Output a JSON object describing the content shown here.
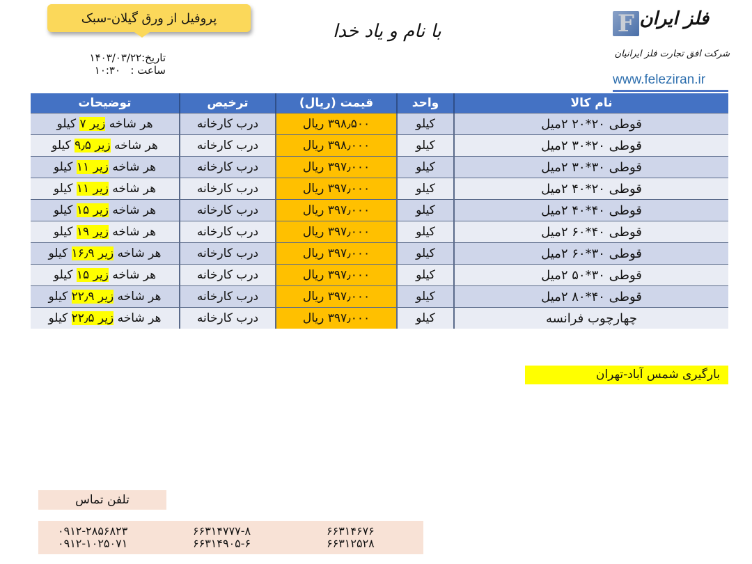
{
  "header": {
    "title": "پروفیل از ورق گیلان-سبک",
    "date_label": "تاریخ:",
    "date": "۱۴۰۳/۰۳/۲۲",
    "time_label": "ساعت :",
    "time": "۱۰:۳۰",
    "invocation": "با نام و یاد خدا"
  },
  "logo": {
    "letter": "F",
    "name": "فلز ایران",
    "company": "شرکت افق تجارت فلز ایرانیان",
    "url": "www.feleziran.ir"
  },
  "table": {
    "headers": [
      "نام کالا",
      "واحد",
      "قیمت (ریال)",
      "ترخیص",
      "توضیحات"
    ],
    "rows": [
      {
        "type": "قوطی",
        "size": "۲۰*۲۰",
        "thickness": "۲میل",
        "unit": "کیلو",
        "price": "۳۹۸٫۵۰۰ ریال",
        "delivery": "درب کارخانه",
        "desc_pre": "هر شاخه ",
        "desc_hl": "زیر ۷",
        "desc_post": " کیلو"
      },
      {
        "type": "قوطی",
        "size": "۳۰*۲۰",
        "thickness": "۲میل",
        "unit": "کیلو",
        "price": "۳۹۸٫۰۰۰ ریال",
        "delivery": "درب کارخانه",
        "desc_pre": "هر شاخه ",
        "desc_hl": "زیر ۹٫۵",
        "desc_post": " کیلو"
      },
      {
        "type": "قوطی",
        "size": "۳۰*۳۰",
        "thickness": "۲میل",
        "unit": "کیلو",
        "price": "۳۹۷٫۰۰۰ ریال",
        "delivery": "درب کارخانه",
        "desc_pre": "هر شاخه ",
        "desc_hl": "زیر ۱۱",
        "desc_post": " کیلو"
      },
      {
        "type": "قوطی",
        "size": "۴۰*۲۰",
        "thickness": "۲میل",
        "unit": "کیلو",
        "price": "۳۹۷٫۰۰۰ ریال",
        "delivery": "درب کارخانه",
        "desc_pre": "هر شاخه ",
        "desc_hl": "زیر ۱۱",
        "desc_post": " کیلو"
      },
      {
        "type": "قوطی",
        "size": "۴۰*۴۰",
        "thickness": "۲میل",
        "unit": "کیلو",
        "price": "۳۹۷٫۰۰۰ ریال",
        "delivery": "درب کارخانه",
        "desc_pre": "هر شاخه ",
        "desc_hl": "زیر ۱۵",
        "desc_post": " کیلو"
      },
      {
        "type": "قوطی",
        "size": "۶۰*۴۰",
        "thickness": "۲میل",
        "unit": "کیلو",
        "price": "۳۹۷٫۰۰۰ ریال",
        "delivery": "درب کارخانه",
        "desc_pre": "هر شاخه ",
        "desc_hl": "زیر ۱۹",
        "desc_post": " کیلو"
      },
      {
        "type": "قوطی",
        "size": "۶۰*۳۰",
        "thickness": "۲میل",
        "unit": "کیلو",
        "price": "۳۹۷٫۰۰۰ ریال",
        "delivery": "درب کارخانه",
        "desc_pre": "هر شاخه ",
        "desc_hl": "زیر ۱۶٫۹",
        "desc_post": " کیلو"
      },
      {
        "type": "قوطی",
        "size": "۵۰*۳۰",
        "thickness": "۲میل",
        "unit": "کیلو",
        "price": "۳۹۷٫۰۰۰ ریال",
        "delivery": "درب کارخانه",
        "desc_pre": "هر شاخه ",
        "desc_hl": "زیر ۱۵",
        "desc_post": " کیلو"
      },
      {
        "type": "قوطی",
        "size": "۸۰*۴۰",
        "thickness": "۲میل",
        "unit": "کیلو",
        "price": "۳۹۷٫۰۰۰ ریال",
        "delivery": "درب کارخانه",
        "desc_pre": "هر شاخه ",
        "desc_hl": "زیر ۲۲٫۹",
        "desc_post": " کیلو"
      },
      {
        "type": "چهارچوب فرانسه",
        "size": "",
        "thickness": "",
        "unit": "کیلو",
        "price": "۳۹۷٫۰۰۰ ریال",
        "delivery": "درب کارخانه",
        "desc_pre": "هر شاخه ",
        "desc_hl": "زیر ۲۲٫۵",
        "desc_post": " کیلو"
      }
    ]
  },
  "loading_note": "بارگیری شمس آباد-تهران",
  "contact": {
    "label": "تلفن تماس",
    "columns": [
      [
        "۰۹۱۲-۲۸۵۶۸۲۳",
        "۰۹۱۲-۱۰۲۵۰۷۱"
      ],
      [
        "۶۶۳۱۴۷۷۷-۸",
        "۶۶۳۱۴۹۰۵-۶"
      ],
      [
        "۶۶۳۱۴۶۷۶",
        "۶۶۳۱۲۵۲۸"
      ]
    ]
  },
  "colors": {
    "header_blue": "#4472c4",
    "price_bg": "#ffc000",
    "highlight": "#ffff00",
    "row_dark": "#cfd6ea",
    "row_light": "#e9ecf4",
    "contact_bg": "#f8e2d6",
    "title_bg": "#fbd85a"
  }
}
